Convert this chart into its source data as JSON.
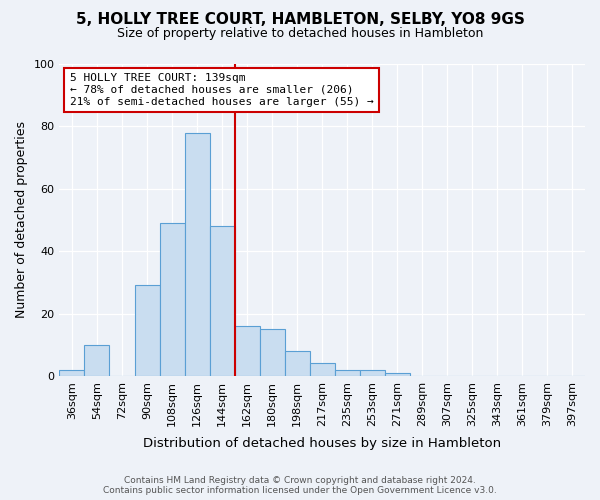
{
  "title": "5, HOLLY TREE COURT, HAMBLETON, SELBY, YO8 9GS",
  "subtitle": "Size of property relative to detached houses in Hambleton",
  "xlabel": "Distribution of detached houses by size in Hambleton",
  "ylabel": "Number of detached properties",
  "bins": [
    "36sqm",
    "54sqm",
    "72sqm",
    "90sqm",
    "108sqm",
    "126sqm",
    "144sqm",
    "162sqm",
    "180sqm",
    "198sqm",
    "217sqm",
    "235sqm",
    "253sqm",
    "271sqm",
    "289sqm",
    "307sqm",
    "325sqm",
    "343sqm",
    "361sqm",
    "379sqm",
    "397sqm"
  ],
  "values": [
    2,
    10,
    0,
    29,
    49,
    78,
    48,
    16,
    15,
    8,
    4,
    2,
    2,
    1,
    0,
    0,
    0,
    0,
    0,
    0,
    0
  ],
  "bar_color": "#c9ddf0",
  "bar_edge_color": "#5a9fd4",
  "vline_color": "#cc0000",
  "vline_x": 6.5,
  "annotation_line1": "5 HOLLY TREE COURT: 139sqm",
  "annotation_line2": "← 78% of detached houses are smaller (206)",
  "annotation_line3": "21% of semi-detached houses are larger (55) →",
  "annotation_box_color": "#ffffff",
  "annotation_box_edge": "#cc0000",
  "footer1": "Contains HM Land Registry data © Crown copyright and database right 2024.",
  "footer2": "Contains public sector information licensed under the Open Government Licence v3.0.",
  "ylim": [
    0,
    100
  ],
  "background_color": "#eef2f8"
}
